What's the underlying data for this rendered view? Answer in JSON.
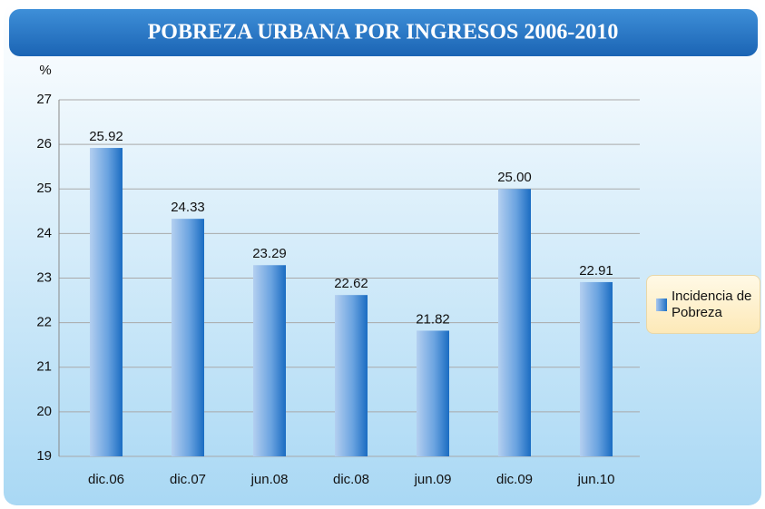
{
  "chart_data": {
    "type": "bar",
    "title": "POBREZA URBANA POR INGRESOS 2006-2010",
    "ylabel": "%",
    "categories": [
      "dic.06",
      "dic.07",
      "jun.08",
      "dic.08",
      "jun.09",
      "dic.09",
      "jun.10"
    ],
    "series": [
      {
        "name": "Incidencia de Pobreza",
        "color": "#4a8fd6",
        "values": [
          25.92,
          24.33,
          23.29,
          22.62,
          21.82,
          25.0,
          22.91
        ],
        "value_labels": [
          "25.92",
          "24.33",
          "23.29",
          "22.62",
          "21.82",
          "25.00",
          "22.91"
        ]
      }
    ],
    "ylim": [
      19,
      27
    ],
    "yticks": [
      19,
      20,
      21,
      22,
      23,
      24,
      25,
      26,
      27
    ],
    "grid": true,
    "legend": "right"
  }
}
